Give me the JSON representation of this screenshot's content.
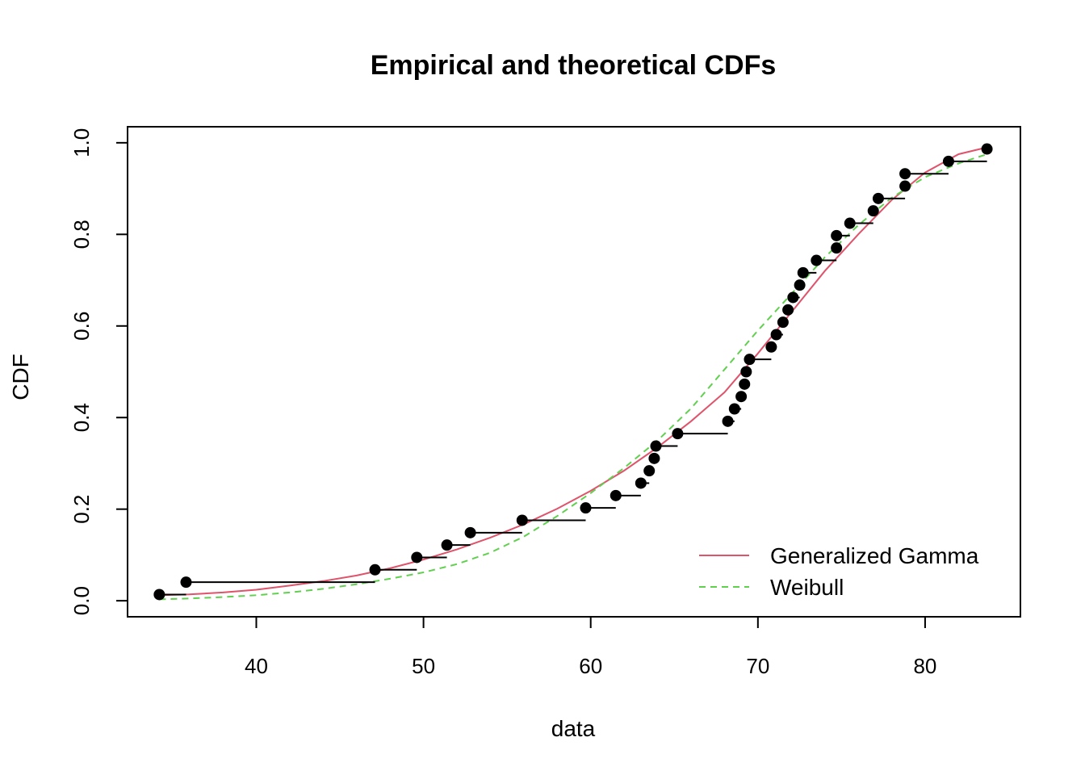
{
  "chart_data": {
    "type": "scatter",
    "title": "Empirical and theoretical CDFs",
    "xlabel": "data",
    "ylabel": "CDF",
    "xlim": [
      32.3,
      85.7
    ],
    "ylim": [
      -0.035,
      1.035
    ],
    "xticks": [
      40,
      50,
      60,
      70,
      80
    ],
    "xtick_labels": [
      "40",
      "50",
      "60",
      "70",
      "80"
    ],
    "yticks": [
      0.0,
      0.2,
      0.4,
      0.6,
      0.8,
      1.0
    ],
    "ytick_labels": [
      "0.0",
      "0.2",
      "0.4",
      "0.6",
      "0.8",
      "1.0"
    ],
    "grid": false,
    "legend_position": "bottom-right",
    "empirical": {
      "x": [
        34.2,
        35.8,
        47.1,
        49.6,
        51.4,
        52.8,
        55.9,
        59.7,
        61.5,
        63.0,
        63.5,
        63.8,
        63.9,
        65.2,
        68.2,
        68.6,
        69.0,
        69.2,
        69.3,
        69.5,
        70.8,
        71.1,
        71.5,
        71.8,
        72.1,
        72.5,
        72.7,
        73.5,
        74.7,
        74.7,
        75.5,
        76.9,
        77.2,
        78.8,
        78.8,
        81.4,
        83.7
      ],
      "y": [
        0.0135,
        0.0405,
        0.0676,
        0.0946,
        0.1216,
        0.1486,
        0.1757,
        0.2027,
        0.2297,
        0.2568,
        0.2838,
        0.3108,
        0.3378,
        0.3649,
        0.3919,
        0.4189,
        0.4459,
        0.473,
        0.5,
        0.527,
        0.5541,
        0.5811,
        0.6081,
        0.6351,
        0.6622,
        0.6892,
        0.7162,
        0.7432,
        0.7703,
        0.7973,
        0.8243,
        0.8514,
        0.8784,
        0.9054,
        0.9324,
        0.9595,
        0.9865
      ],
      "color": "#000000"
    },
    "series": [
      {
        "name": "Generalized Gamma",
        "color": "#DF536B",
        "style": "solid",
        "x": [
          34.2,
          36,
          38,
          40,
          42,
          44,
          46,
          48,
          50,
          52,
          54,
          56,
          58,
          60,
          62,
          64,
          66,
          68,
          70,
          72,
          74,
          76,
          78,
          80,
          82,
          83.7
        ],
        "y": [
          0.012,
          0.014,
          0.018,
          0.024,
          0.033,
          0.043,
          0.055,
          0.071,
          0.09,
          0.112,
          0.138,
          0.167,
          0.201,
          0.24,
          0.284,
          0.335,
          0.392,
          0.455,
          0.54,
          0.63,
          0.72,
          0.8,
          0.875,
          0.935,
          0.975,
          0.99
        ]
      },
      {
        "name": "Weibull",
        "color": "#61D04F",
        "style": "dashed",
        "x": [
          34.2,
          36,
          38,
          40,
          42,
          44,
          46,
          48,
          50,
          52,
          54,
          56,
          58,
          60,
          62,
          64,
          66,
          68,
          70,
          72,
          74,
          76,
          78,
          80,
          82,
          83.7
        ],
        "y": [
          0.003,
          0.005,
          0.008,
          0.012,
          0.018,
          0.026,
          0.036,
          0.048,
          0.062,
          0.08,
          0.105,
          0.14,
          0.185,
          0.235,
          0.29,
          0.35,
          0.42,
          0.505,
          0.59,
          0.67,
          0.75,
          0.82,
          0.88,
          0.925,
          0.955,
          0.975
        ]
      }
    ]
  }
}
